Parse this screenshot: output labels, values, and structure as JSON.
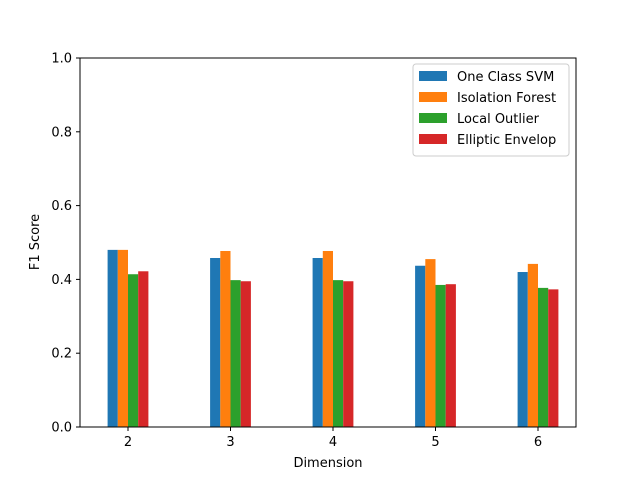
{
  "chart_data": {
    "type": "bar",
    "xlabel": "Dimension",
    "ylabel": "F1 Score",
    "categories": [
      "2",
      "3",
      "4",
      "5",
      "6"
    ],
    "ylim": [
      0,
      1.0
    ],
    "yticks": [
      "0.0",
      "0.2",
      "0.4",
      "0.6",
      "0.8",
      "1.0"
    ],
    "grid": false,
    "legend_position": "top-right",
    "series": [
      {
        "name": "One Class SVM",
        "color": "#1f77b4",
        "values": [
          0.48,
          0.458,
          0.458,
          0.437,
          0.42
        ]
      },
      {
        "name": "Isolation Forest",
        "color": "#ff7f0e",
        "values": [
          0.48,
          0.477,
          0.477,
          0.455,
          0.442
        ]
      },
      {
        "name": "Local Outlier",
        "color": "#2ca02c",
        "values": [
          0.414,
          0.398,
          0.398,
          0.385,
          0.377
        ]
      },
      {
        "name": "Elliptic Envelop",
        "color": "#d62728",
        "values": [
          0.422,
          0.395,
          0.395,
          0.387,
          0.373
        ]
      }
    ]
  }
}
